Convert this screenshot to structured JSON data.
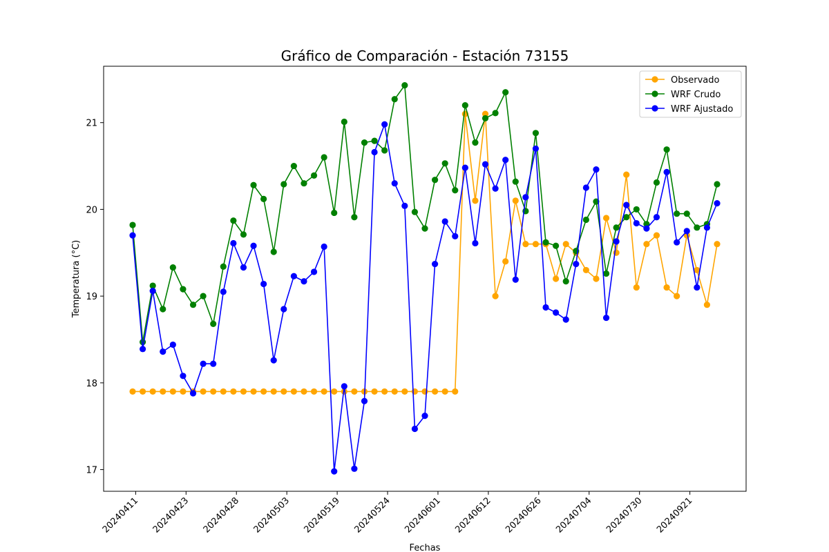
{
  "chart_data": {
    "type": "line",
    "title": "Gráfico de Comparación - Estación 73155",
    "xlabel": "Fechas",
    "ylabel": "Temperatura (°C)",
    "ylim": [
      16.75,
      21.65
    ],
    "yticks": [
      17,
      18,
      19,
      20,
      21
    ],
    "xtick_labels": [
      "20240411",
      "20240423",
      "20240428",
      "20240503",
      "20240519",
      "20240524",
      "20240601",
      "20240612",
      "20240626",
      "20240704",
      "20240730",
      "20240921"
    ],
    "xtick_every": 5,
    "xtick_offset": 0.3,
    "grid": false,
    "legend": "upper right",
    "series": [
      {
        "name": "Observado",
        "color": "#ffa500",
        "values": [
          17.9,
          17.9,
          17.9,
          17.9,
          17.9,
          17.9,
          17.9,
          17.9,
          17.9,
          17.9,
          17.9,
          17.9,
          17.9,
          17.9,
          17.9,
          17.9,
          17.9,
          17.9,
          17.9,
          17.9,
          17.9,
          17.9,
          17.9,
          17.9,
          17.9,
          17.9,
          17.9,
          17.9,
          17.9,
          17.9,
          17.9,
          17.9,
          17.9,
          21.1,
          20.1,
          21.1,
          19.0,
          19.4,
          20.1,
          19.6,
          19.6,
          19.6,
          19.2,
          19.6,
          19.5,
          19.3,
          19.2,
          19.9,
          19.5,
          20.4,
          19.1,
          19.6,
          19.7,
          19.1,
          19.0,
          19.7,
          19.3,
          18.9,
          19.6
        ]
      },
      {
        "name": "WRF Crudo",
        "color": "#008000",
        "values": [
          19.82,
          18.47,
          19.12,
          18.85,
          19.33,
          19.08,
          18.9,
          19.0,
          18.68,
          19.34,
          19.87,
          19.71,
          20.28,
          20.12,
          19.51,
          20.29,
          20.5,
          20.3,
          20.39,
          20.6,
          19.96,
          21.01,
          19.91,
          20.77,
          20.79,
          20.68,
          21.27,
          21.43,
          19.97,
          19.78,
          20.34,
          20.53,
          20.22,
          21.2,
          20.77,
          21.05,
          21.11,
          21.35,
          20.32,
          19.98,
          20.88,
          19.62,
          19.58,
          19.17,
          19.52,
          19.88,
          20.09,
          19.26,
          19.79,
          19.91,
          20.0,
          19.83,
          20.31,
          20.69,
          19.95,
          19.95,
          19.79,
          19.83,
          20.29
        ]
      },
      {
        "name": "WRF Ajustado",
        "color": "#0000ff",
        "values": [
          19.7,
          18.39,
          19.06,
          18.36,
          18.44,
          18.08,
          17.88,
          18.22,
          18.22,
          19.05,
          19.61,
          19.33,
          19.58,
          19.14,
          18.26,
          18.85,
          19.23,
          19.17,
          19.28,
          19.57,
          16.98,
          17.96,
          17.01,
          17.79,
          20.66,
          20.98,
          20.3,
          20.04,
          17.47,
          17.62,
          19.37,
          19.86,
          19.69,
          20.48,
          19.61,
          20.52,
          20.24,
          20.57,
          19.19,
          20.14,
          20.7,
          18.87,
          18.81,
          18.73,
          19.37,
          20.25,
          20.46,
          18.75,
          19.63,
          20.05,
          19.84,
          19.78,
          19.91,
          20.43,
          19.62,
          19.75,
          19.1,
          19.79,
          20.07
        ]
      }
    ]
  }
}
